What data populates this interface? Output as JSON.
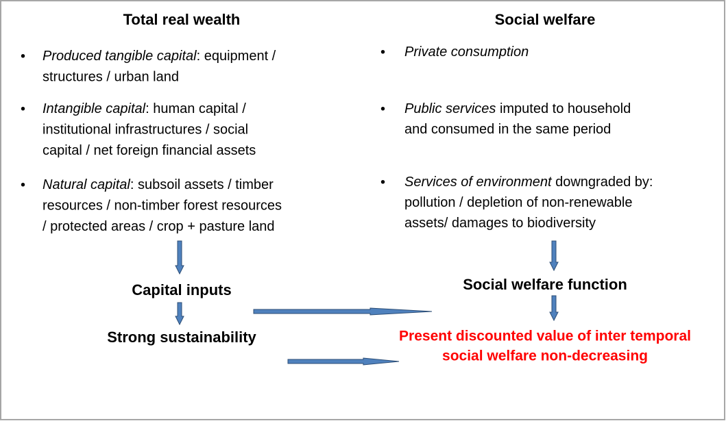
{
  "left": {
    "title": "Total real wealth",
    "bullets": [
      {
        "term": "Produced tangible capital",
        "lines": [
          ": equipment /",
          "structures / urban land"
        ]
      },
      {
        "term": "Intangible capital",
        "lines": [
          ": human capital /",
          "institutional infrastructures / social",
          "capital / net foreign financial assets"
        ]
      },
      {
        "term": "Natural capital",
        "lines": [
          ": subsoil assets / timber",
          "resources / non-timber forest resources",
          "/ protected areas / crop + pasture land"
        ]
      }
    ],
    "flow": [
      "Capital inputs",
      "Strong sustainability"
    ]
  },
  "right": {
    "title": "Social welfare",
    "bullets": [
      {
        "term": "Private consumption",
        "lines": [
          ""
        ]
      },
      {
        "term": "Public services",
        "lines": [
          " imputed to household",
          "and consumed in the same period"
        ]
      },
      {
        "term": "Services of environment",
        "lines": [
          " downgraded by:",
          "pollution / depletion of non-renewable",
          "assets/ damages to biodiversity"
        ]
      }
    ],
    "flow": [
      "Social welfare function"
    ]
  },
  "conclusion": [
    "Present discounted value of inter temporal",
    "social welfare non-decreasing"
  ]
}
